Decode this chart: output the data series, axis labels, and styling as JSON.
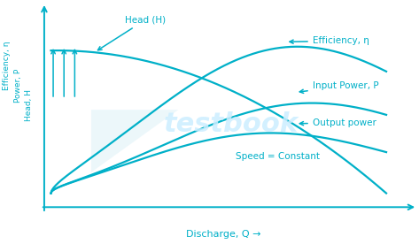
{
  "bg_color": "#ffffff",
  "curve_color": "#00b0c8",
  "text_color": "#00b0c8",
  "watermark_color": "#cceeff",
  "xlabel": "Discharge, Q →",
  "ylabel1": "Efficiency, η",
  "ylabel2": "Power, P",
  "ylabel3": "Head, H",
  "ann_head": "Head (H)",
  "ann_eff": "Efficiency, η",
  "ann_inp": "Input Power, P",
  "ann_out": "Output power",
  "ann_spd": "Speed = Constant",
  "figsize": [
    4.73,
    2.76
  ],
  "dpi": 100
}
